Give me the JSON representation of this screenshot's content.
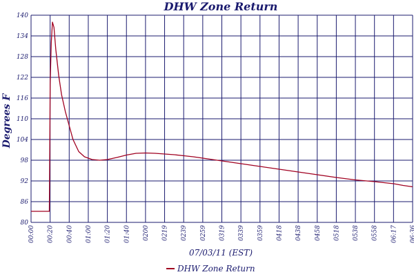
{
  "chart_data": {
    "type": "line",
    "title": "DHW Zone Return",
    "xlabel": "07/03/11 (EST)",
    "ylabel": "Degrees F",
    "ylim": [
      80,
      140
    ],
    "yticks": [
      "140",
      "134",
      "128",
      "122",
      "116",
      "110",
      "104",
      "98",
      "92",
      "86",
      "80"
    ],
    "xticks": [
      "00:00",
      "00:20",
      "00:40",
      "01:00",
      "01:20",
      "01:40",
      "0200",
      "0219",
      "0239",
      "0259",
      "0319",
      "0339",
      "0359",
      "0418",
      "0438",
      "0458",
      "0518",
      "0538",
      "0558",
      "06:17",
      "06:36"
    ],
    "grid": true,
    "legend": "bottom-center",
    "colors": {
      "line": "#a00020",
      "grid": "#1a1a6e",
      "text": "#1a1a6e"
    },
    "series": [
      {
        "name": "DHW Zone Return",
        "x": [
          0,
          0.96,
          0.98,
          1.0,
          1.06,
          1.12,
          1.2,
          1.3,
          1.45,
          1.6,
          1.8,
          2.0,
          2.2,
          2.5,
          2.8,
          3.2,
          3.6,
          4.0,
          4.5,
          5.0,
          5.5,
          6.0,
          6.5,
          7.0,
          7.5,
          8.0,
          8.5,
          9.0,
          9.5,
          10.0,
          11.0,
          12.0,
          13.0,
          14.0,
          15.0,
          16.0,
          17.0,
          18.0,
          19.0,
          19.5,
          20.0
        ],
        "values": [
          83.2,
          83.2,
          100.0,
          120.0,
          132.0,
          138.0,
          136.5,
          130.0,
          122.5,
          117.0,
          112.0,
          108.0,
          104.0,
          100.5,
          99.0,
          98.2,
          98.0,
          98.2,
          98.8,
          99.5,
          100.0,
          100.1,
          100.0,
          99.8,
          99.6,
          99.3,
          99.0,
          98.6,
          98.2,
          97.8,
          97.0,
          96.2,
          95.4,
          94.6,
          93.8,
          93.0,
          92.3,
          91.8,
          91.2,
          90.7,
          90.3
        ]
      }
    ]
  }
}
